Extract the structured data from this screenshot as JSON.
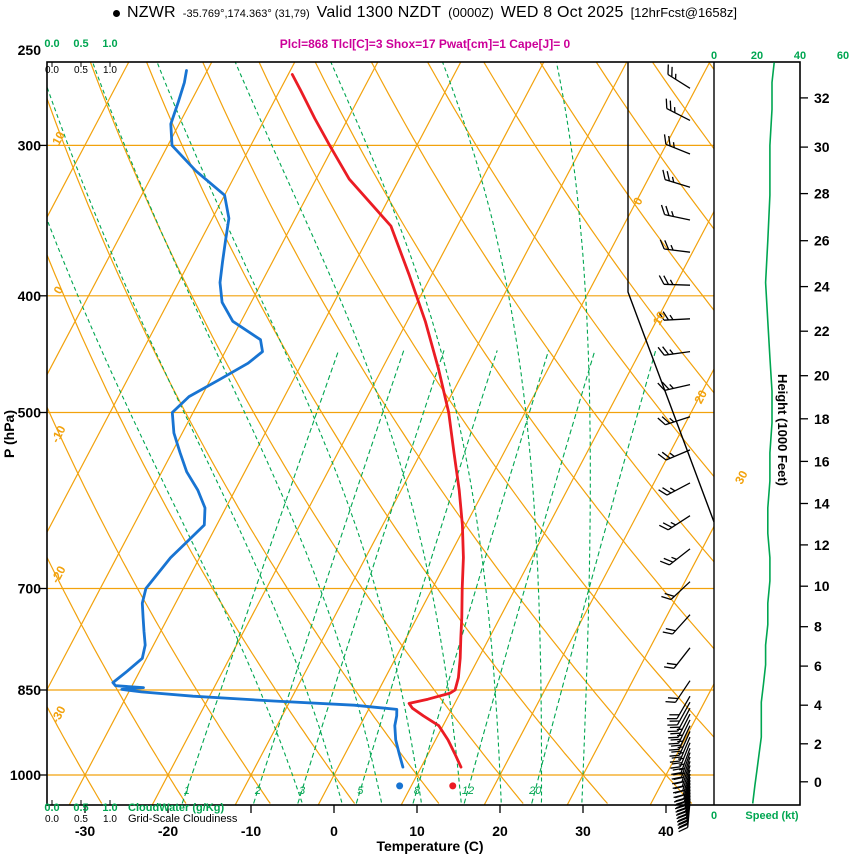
{
  "header": {
    "station": "NZWR",
    "coords": "-35.769°,174.363° (31,79)",
    "valid": "Valid 1300 NZDT",
    "valid_minor": "(0000Z)",
    "date": "WED 8 Oct 2025",
    "fcst_tag": "[12hrFcst@1658z]",
    "params_line": "Plcl=868 Tlcl[C]=3 Shox=17 Pwat[cm]=1 Cape[J]= 0"
  },
  "chart_data": {
    "type": "line",
    "variant": "skew-t-log-p-sounding",
    "axes": {
      "pressure": {
        "label": "P (hPa)",
        "scale": "log",
        "ticks": [
          250,
          300,
          400,
          500,
          700,
          850,
          1000
        ],
        "range": [
          256,
          1056
        ]
      },
      "temperature": {
        "label": "Temperature (C)",
        "ticks": [
          -30,
          -20,
          -10,
          0,
          10,
          20,
          30,
          40
        ]
      },
      "height": {
        "label": "Height (1000 Feet)",
        "ticks_ft_pressure": [
          [
            0,
            1013
          ],
          [
            2,
            942
          ],
          [
            4,
            875
          ],
          [
            6,
            812
          ],
          [
            8,
            753
          ],
          [
            10,
            697
          ],
          [
            12,
            644
          ],
          [
            14,
            595
          ],
          [
            16,
            549
          ],
          [
            18,
            506
          ],
          [
            20,
            466
          ],
          [
            22,
            428
          ],
          [
            24,
            393
          ],
          [
            26,
            360
          ],
          [
            28,
            329
          ],
          [
            30,
            301
          ],
          [
            32,
            274
          ]
        ]
      },
      "speed": {
        "label": "Speed (kt)",
        "ticks": [
          0,
          20,
          40,
          60
        ]
      },
      "cloudwater": {
        "label": "CloudWater (g/Kg)",
        "ticks": [
          "0.0",
          "0.5",
          "1.0"
        ]
      },
      "cloudiness": {
        "label": "Grid-Scale Cloudiness",
        "ticks": [
          "0.0",
          "0.5",
          "1.0"
        ]
      }
    },
    "background": {
      "isotherms_c": {
        "start": -110,
        "end": 50,
        "step": 10
      },
      "isotherm_labels": [
        {
          "t": 0,
          "p": 335
        },
        {
          "t": 10,
          "p": 419
        },
        {
          "t": 20,
          "p": 487
        },
        {
          "t": 30,
          "p": 568
        }
      ],
      "dry_adiabats_c": {
        "start": -40,
        "end": 140,
        "step": 10
      },
      "dry_adiabat_labels": [
        {
          "t": 10,
          "p": 297
        },
        {
          "t": 0,
          "p": 397
        },
        {
          "t": -10,
          "p": 523
        },
        {
          "t": -20,
          "p": 684
        },
        {
          "t": -30,
          "p": 894
        }
      ],
      "moist_adiabats_c": [
        -5,
        0,
        5,
        10,
        15,
        20,
        25,
        30
      ],
      "mixing_ratio_gkg": [
        1,
        2,
        3,
        5,
        8,
        12,
        20
      ]
    },
    "series": {
      "temperature_c": [
        [
          985,
          14.8
        ],
        [
          960,
          13.2
        ],
        [
          935,
          11.5
        ],
        [
          910,
          9.5
        ],
        [
          893,
          7
        ],
        [
          880,
          5.2
        ],
        [
          872,
          4.5
        ],
        [
          865,
          6.5
        ],
        [
          855,
          8.8
        ],
        [
          850,
          9.2
        ],
        [
          830,
          8.8
        ],
        [
          800,
          7.8
        ],
        [
          770,
          6.6
        ],
        [
          740,
          5.4
        ],
        [
          700,
          3.6
        ],
        [
          660,
          1.8
        ],
        [
          620,
          -0.4
        ],
        [
          580,
          -3
        ],
        [
          540,
          -6
        ],
        [
          500,
          -9.2
        ],
        [
          460,
          -13.2
        ],
        [
          420,
          -17.8
        ],
        [
          385,
          -22.6
        ],
        [
          350,
          -28
        ],
        [
          320,
          -36
        ],
        [
          300,
          -40.5
        ],
        [
          285,
          -44
        ],
        [
          270,
          -47.5
        ],
        [
          262,
          -49.5
        ]
      ],
      "dewpoint_c": [
        [
          985,
          7.8
        ],
        [
          960,
          6.5
        ],
        [
          935,
          5.2
        ],
        [
          910,
          4.2
        ],
        [
          893,
          3.8
        ],
        [
          882,
          3.4
        ],
        [
          875,
          -2
        ],
        [
          868,
          -12
        ],
        [
          860,
          -22
        ],
        [
          853,
          -28.5
        ],
        [
          849,
          -31
        ],
        [
          846,
          -28.5
        ],
        [
          843,
          -32
        ],
        [
          838,
          -32.5
        ],
        [
          820,
          -31.5
        ],
        [
          800,
          -30.5
        ],
        [
          780,
          -31
        ],
        [
          760,
          -32
        ],
        [
          740,
          -33
        ],
        [
          720,
          -34
        ],
        [
          700,
          -34.5
        ],
        [
          680,
          -34
        ],
        [
          660,
          -33.5
        ],
        [
          640,
          -32.5
        ],
        [
          620,
          -31.5
        ],
        [
          600,
          -32.5
        ],
        [
          580,
          -34.5
        ],
        [
          560,
          -37
        ],
        [
          540,
          -39
        ],
        [
          520,
          -41
        ],
        [
          500,
          -42.5
        ],
        [
          485,
          -41.5
        ],
        [
          470,
          -39
        ],
        [
          455,
          -36.5
        ],
        [
          445,
          -35.5
        ],
        [
          435,
          -36.5
        ],
        [
          420,
          -41
        ],
        [
          405,
          -43.5
        ],
        [
          390,
          -45
        ],
        [
          375,
          -46
        ],
        [
          360,
          -47
        ],
        [
          345,
          -48
        ],
        [
          330,
          -50
        ],
        [
          315,
          -55
        ],
        [
          300,
          -59.5
        ],
        [
          288,
          -61
        ],
        [
          276,
          -61.5
        ],
        [
          266,
          -62
        ],
        [
          260,
          -62.5
        ]
      ],
      "surface_markers": {
        "pressure": 1021,
        "temp_c": 15,
        "dewpoint_c": 8.6
      },
      "wind_barbs_p_dir_kt": [
        [
          1052,
          185,
          18
        ],
        [
          1046,
          186,
          18
        ],
        [
          1040,
          187,
          19
        ],
        [
          1034,
          188,
          19
        ],
        [
          1028,
          189,
          20
        ],
        [
          1022,
          190,
          20
        ],
        [
          1016,
          191,
          20
        ],
        [
          1010,
          192,
          21
        ],
        [
          1004,
          193,
          21
        ],
        [
          998,
          194,
          21
        ],
        [
          990,
          195,
          22
        ],
        [
          982,
          196,
          22
        ],
        [
          974,
          197,
          22
        ],
        [
          966,
          198,
          23
        ],
        [
          958,
          199,
          23
        ],
        [
          950,
          200,
          23
        ],
        [
          940,
          202,
          24
        ],
        [
          930,
          203,
          24
        ],
        [
          920,
          204,
          24
        ],
        [
          910,
          205,
          24
        ],
        [
          900,
          206,
          23
        ],
        [
          890,
          207,
          23
        ],
        [
          880,
          208,
          22
        ],
        [
          870,
          209,
          22
        ],
        [
          860,
          210,
          21
        ],
        [
          835,
          214,
          20
        ],
        [
          784,
          218,
          21
        ],
        [
          736,
          222,
          21
        ],
        [
          691,
          227,
          22
        ],
        [
          649,
          232,
          23
        ],
        [
          609,
          237,
          24
        ],
        [
          572,
          242,
          24
        ],
        [
          537,
          247,
          25
        ],
        [
          504,
          252,
          25
        ],
        [
          474,
          257,
          26
        ],
        [
          445,
          262,
          26
        ],
        [
          418,
          267,
          27
        ],
        [
          392,
          272,
          27
        ],
        [
          368,
          277,
          26
        ],
        [
          346,
          282,
          26
        ],
        [
          325,
          287,
          25
        ],
        [
          305,
          292,
          25
        ],
        [
          286,
          297,
          26
        ],
        [
          269,
          302,
          27
        ]
      ],
      "speed_kt": [
        [
          1056,
          18
        ],
        [
          1020,
          19
        ],
        [
          990,
          20
        ],
        [
          960,
          21
        ],
        [
          930,
          22
        ],
        [
          900,
          22
        ],
        [
          870,
          22
        ],
        [
          840,
          23
        ],
        [
          810,
          24
        ],
        [
          780,
          24
        ],
        [
          750,
          25
        ],
        [
          720,
          25
        ],
        [
          690,
          26
        ],
        [
          660,
          26
        ],
        [
          630,
          25
        ],
        [
          600,
          25
        ],
        [
          570,
          26
        ],
        [
          540,
          26
        ],
        [
          510,
          27
        ],
        [
          480,
          27
        ],
        [
          450,
          26
        ],
        [
          420,
          25
        ],
        [
          390,
          24
        ],
        [
          360,
          25
        ],
        [
          330,
          26
        ],
        [
          300,
          26
        ],
        [
          280,
          27
        ],
        [
          266,
          27
        ],
        [
          256,
          28
        ]
      ]
    },
    "colors": {
      "grid_orange": "#F2A20D",
      "green": "#00A651",
      "temp_red": "#EB1C24",
      "dewpoint_blue": "#1874D2",
      "magenta": "#CC0099",
      "black": "#000000"
    }
  }
}
